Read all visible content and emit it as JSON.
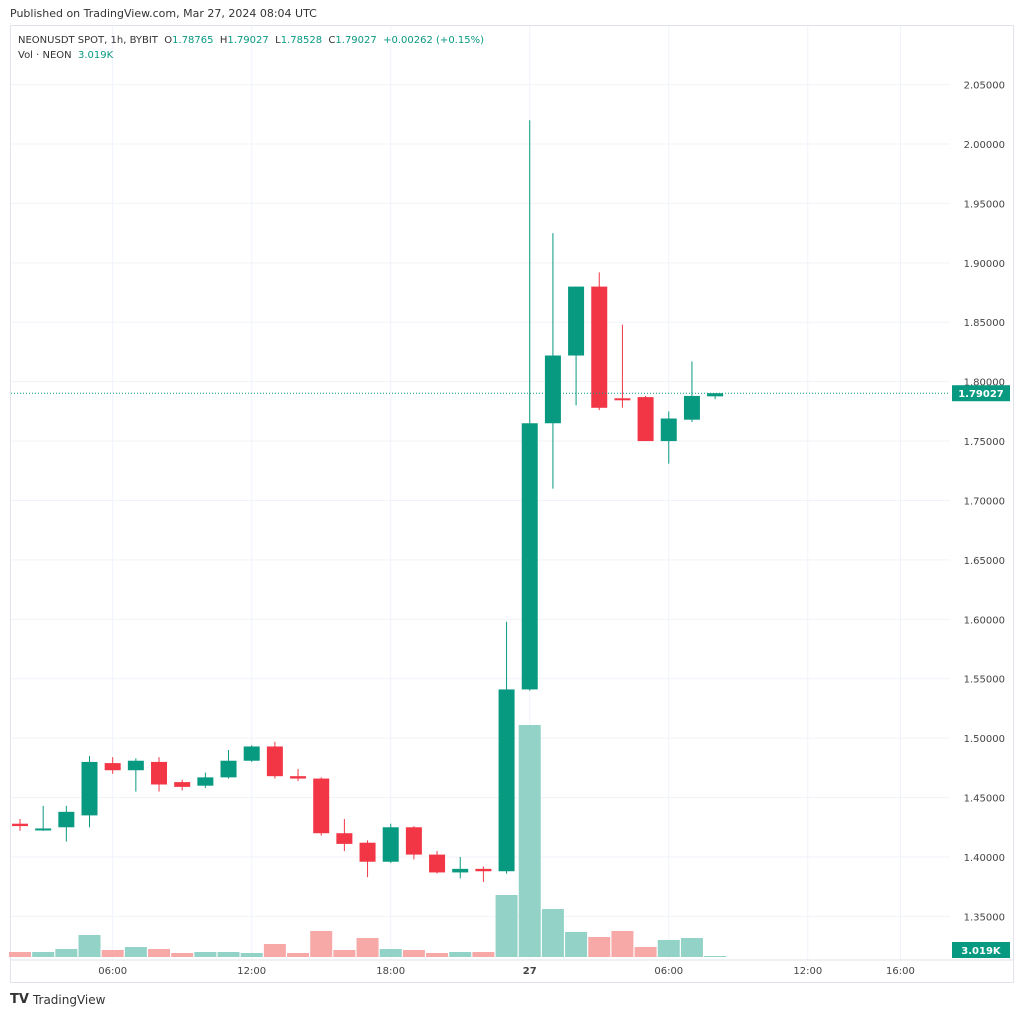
{
  "published": "Published on TradingView.com, Mar 27, 2024 08:04 UTC",
  "legend": {
    "symbol": "NEONUSDT SPOT, 1h, BYBIT",
    "open": "O1.78765",
    "high": "H1.79027",
    "low": "L1.78528",
    "close": "C1.79027",
    "change": "+0.00262 (+0.15%)",
    "vol_label": "Vol · NEON",
    "vol_value": "3.019K"
  },
  "brand": "TradingView",
  "colors": {
    "up": "#089981",
    "down": "#f23645",
    "vol_up": "#92d2c7",
    "vol_down": "#f7a9a8"
  },
  "chart_data": {
    "type": "candlestick",
    "y_ticks": [
      "2.05000",
      "2.00000",
      "1.95000",
      "1.90000",
      "1.85000",
      "1.80000",
      "1.75000",
      "1.70000",
      "1.65000",
      "1.60000",
      "1.55000",
      "1.50000",
      "1.45000",
      "1.40000",
      "1.35000"
    ],
    "x_ticks": [
      "06:00",
      "12:00",
      "18:00",
      "27",
      "06:00",
      "12:00",
      "16:00"
    ],
    "last_price": "1.79027",
    "last_volume": "3.019K",
    "candles": [
      {
        "t": "26 02:00",
        "o": 1.428,
        "h": 1.432,
        "l": 1.422,
        "c": 1.426,
        "v": 15
      },
      {
        "t": "26 03:00",
        "o": 1.424,
        "h": 1.443,
        "l": 1.422,
        "c": 1.424,
        "v": 15
      },
      {
        "t": "26 04:00",
        "o": 1.425,
        "h": 1.443,
        "l": 1.413,
        "c": 1.438,
        "v": 24
      },
      {
        "t": "26 05:00",
        "o": 1.435,
        "h": 1.485,
        "l": 1.425,
        "c": 1.48,
        "v": 66
      },
      {
        "t": "26 06:00",
        "o": 1.479,
        "h": 1.484,
        "l": 1.47,
        "c": 1.473,
        "v": 21
      },
      {
        "t": "26 07:00",
        "o": 1.473,
        "h": 1.483,
        "l": 1.455,
        "c": 1.481,
        "v": 30
      },
      {
        "t": "26 08:00",
        "o": 1.48,
        "h": 1.484,
        "l": 1.455,
        "c": 1.461,
        "v": 24
      },
      {
        "t": "26 09:00",
        "o": 1.463,
        "h": 1.465,
        "l": 1.456,
        "c": 1.459,
        "v": 12
      },
      {
        "t": "26 10:00",
        "o": 1.46,
        "h": 1.471,
        "l": 1.458,
        "c": 1.467,
        "v": 15
      },
      {
        "t": "26 11:00",
        "o": 1.467,
        "h": 1.49,
        "l": 1.466,
        "c": 1.481,
        "v": 15
      },
      {
        "t": "26 12:00",
        "o": 1.481,
        "h": 1.494,
        "l": 1.48,
        "c": 1.493,
        "v": 12
      },
      {
        "t": "26 13:00",
        "o": 1.493,
        "h": 1.497,
        "l": 1.466,
        "c": 1.468,
        "v": 39
      },
      {
        "t": "26 14:00",
        "o": 1.468,
        "h": 1.474,
        "l": 1.464,
        "c": 1.466,
        "v": 12
      },
      {
        "t": "26 15:00",
        "o": 1.466,
        "h": 1.467,
        "l": 1.418,
        "c": 1.42,
        "v": 78
      },
      {
        "t": "26 16:00",
        "o": 1.42,
        "h": 1.432,
        "l": 1.405,
        "c": 1.411,
        "v": 21
      },
      {
        "t": "26 17:00",
        "o": 1.412,
        "h": 1.414,
        "l": 1.383,
        "c": 1.396,
        "v": 57
      },
      {
        "t": "26 18:00",
        "o": 1.396,
        "h": 1.428,
        "l": 1.395,
        "c": 1.425,
        "v": 24
      },
      {
        "t": "26 19:00",
        "o": 1.425,
        "h": 1.426,
        "l": 1.398,
        "c": 1.402,
        "v": 21
      },
      {
        "t": "26 20:00",
        "o": 1.402,
        "h": 1.405,
        "l": 1.386,
        "c": 1.387,
        "v": 12
      },
      {
        "t": "26 21:00",
        "o": 1.387,
        "h": 1.4,
        "l": 1.382,
        "c": 1.39,
        "v": 15
      },
      {
        "t": "26 22:00",
        "o": 1.39,
        "h": 1.392,
        "l": 1.379,
        "c": 1.388,
        "v": 15
      },
      {
        "t": "26 23:00",
        "o": 1.388,
        "h": 1.598,
        "l": 1.386,
        "c": 1.541,
        "v": 186
      },
      {
        "t": "27 00:00",
        "o": 1.541,
        "h": 2.02,
        "l": 1.54,
        "c": 1.765,
        "v": 696
      },
      {
        "t": "27 01:00",
        "o": 1.765,
        "h": 1.925,
        "l": 1.71,
        "c": 1.822,
        "v": 144
      },
      {
        "t": "27 02:00",
        "o": 1.822,
        "h": 1.88,
        "l": 1.78,
        "c": 1.88,
        "v": 75
      },
      {
        "t": "27 03:00",
        "o": 1.88,
        "h": 1.892,
        "l": 1.776,
        "c": 1.778,
        "v": 60
      },
      {
        "t": "27 04:00",
        "o": 1.786,
        "h": 1.848,
        "l": 1.778,
        "c": 1.785,
        "v": 78
      },
      {
        "t": "27 05:00",
        "o": 1.787,
        "h": 1.788,
        "l": 1.75,
        "c": 1.75,
        "v": 30
      },
      {
        "t": "27 06:00",
        "o": 1.75,
        "h": 1.775,
        "l": 1.731,
        "c": 1.769,
        "v": 51
      },
      {
        "t": "27 07:00",
        "o": 1.768,
        "h": 1.817,
        "l": 1.766,
        "c": 1.788,
        "v": 57
      },
      {
        "t": "27 08:00",
        "o": 1.78765,
        "h": 1.79027,
        "l": 1.78528,
        "c": 1.79027,
        "v": 3.019
      }
    ]
  }
}
